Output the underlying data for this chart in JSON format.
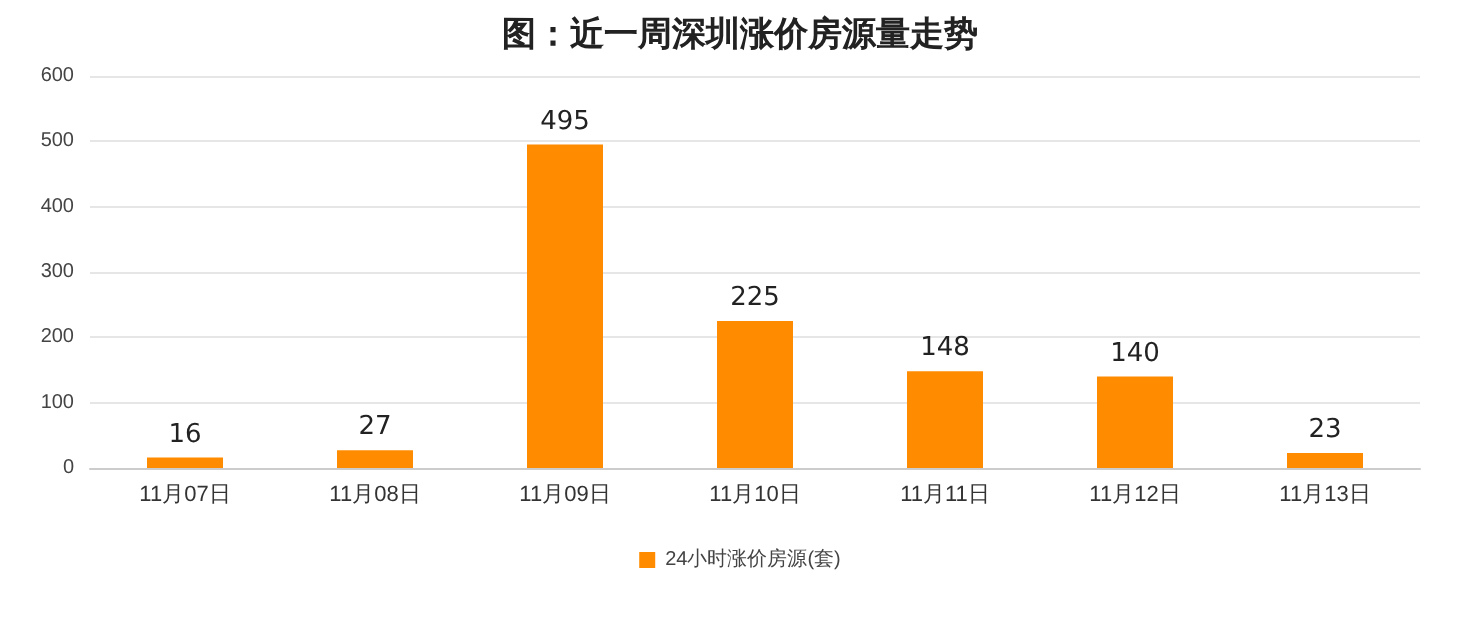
{
  "chart_data": {
    "type": "bar",
    "title": "图：近一周深圳涨价房源量走势",
    "categories": [
      "11月07日",
      "11月08日",
      "11月09日",
      "11月10日",
      "11月11日",
      "11月12日",
      "11月13日"
    ],
    "series": [
      {
        "name": "24小时涨价房源(套)",
        "color": "#ff8c00",
        "values": [
          16,
          27,
          495,
          225,
          148,
          140,
          23
        ]
      }
    ],
    "ylim": [
      0,
      600
    ],
    "yticks": [
      0,
      100,
      200,
      300,
      400,
      500,
      600
    ],
    "grid": "y",
    "legend": "bottom",
    "data_labels": true
  }
}
